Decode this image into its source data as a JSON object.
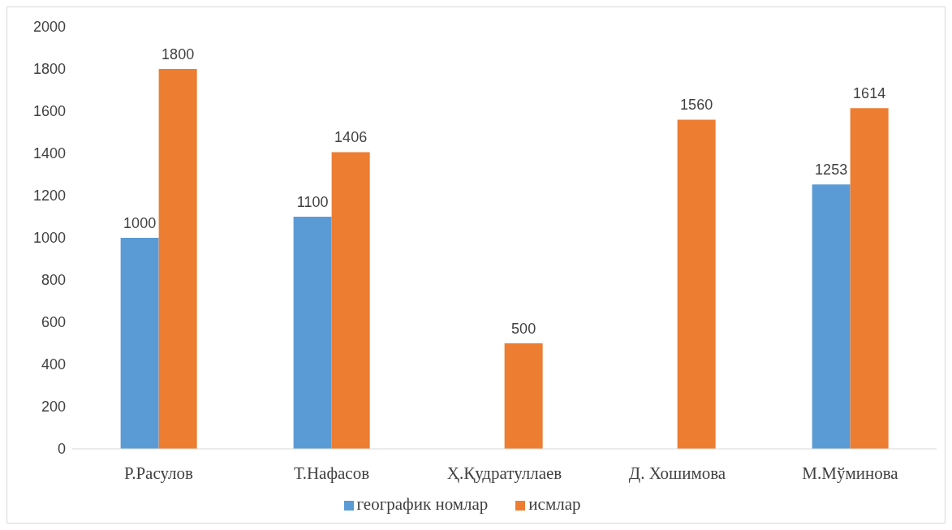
{
  "chart_data": {
    "type": "bar",
    "categories": [
      "Р.Расулов",
      "Т.Нафасов",
      "Ҳ.Қудратуллаев",
      "Д. Хошимова",
      "М.Мўминова"
    ],
    "series": [
      {
        "name": "географик номлар",
        "color": "#5b9bd5",
        "values": [
          1000,
          1100,
          null,
          null,
          1253
        ]
      },
      {
        "name": "исмлар",
        "color": "#ed7d31",
        "values": [
          1800,
          1406,
          500,
          1560,
          1614
        ]
      }
    ],
    "ylim": [
      0,
      2000
    ],
    "yticks": [
      0,
      200,
      400,
      600,
      800,
      1000,
      1200,
      1400,
      1600,
      1800,
      2000
    ],
    "data_labels": true,
    "legend": "bottom"
  }
}
